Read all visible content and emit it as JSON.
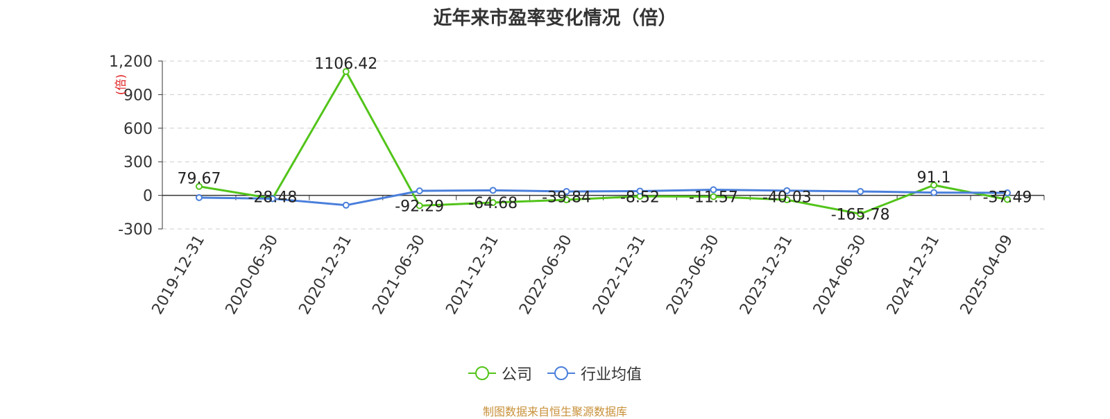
{
  "chart_data": {
    "type": "line",
    "title": "近年来市盈率变化情况（倍）",
    "ylabel": "(倍)",
    "ylim": [
      -300,
      1200
    ],
    "yticks": [
      -300,
      0,
      300,
      600,
      900,
      1200
    ],
    "ytick_labels": [
      "-300",
      "0",
      "300",
      "600",
      "900",
      "1,200"
    ],
    "categories": [
      "2019-12-31",
      "2020-06-30",
      "2020-12-31",
      "2021-06-30",
      "2021-12-31",
      "2022-06-30",
      "2022-12-31",
      "2023-06-30",
      "2023-12-31",
      "2024-06-30",
      "2024-12-31",
      "2025-04-09"
    ],
    "grid": true,
    "legend_position": "bottom",
    "series": [
      {
        "name": "公司",
        "color": "#52c41a",
        "values": [
          79.67,
          -28.48,
          1106.42,
          -92.29,
          -64.68,
          -39.84,
          -8.52,
          -11.57,
          -40.03,
          -165.78,
          91.1,
          -37.49
        ],
        "labels": [
          "79.67",
          "-28.48",
          "1106.42",
          "-92.29",
          "-64.68",
          "-39.84",
          "-8.52",
          "-11.57",
          "-40.03",
          "-165.78",
          "91.1",
          "-37.49"
        ]
      },
      {
        "name": "行业均值",
        "color": "#4a7fdb",
        "values": [
          -20,
          -30,
          -88,
          40,
          45,
          35,
          38,
          50,
          42,
          35,
          25,
          22
        ]
      }
    ]
  },
  "source": "制图数据来自恒生聚源数据库"
}
